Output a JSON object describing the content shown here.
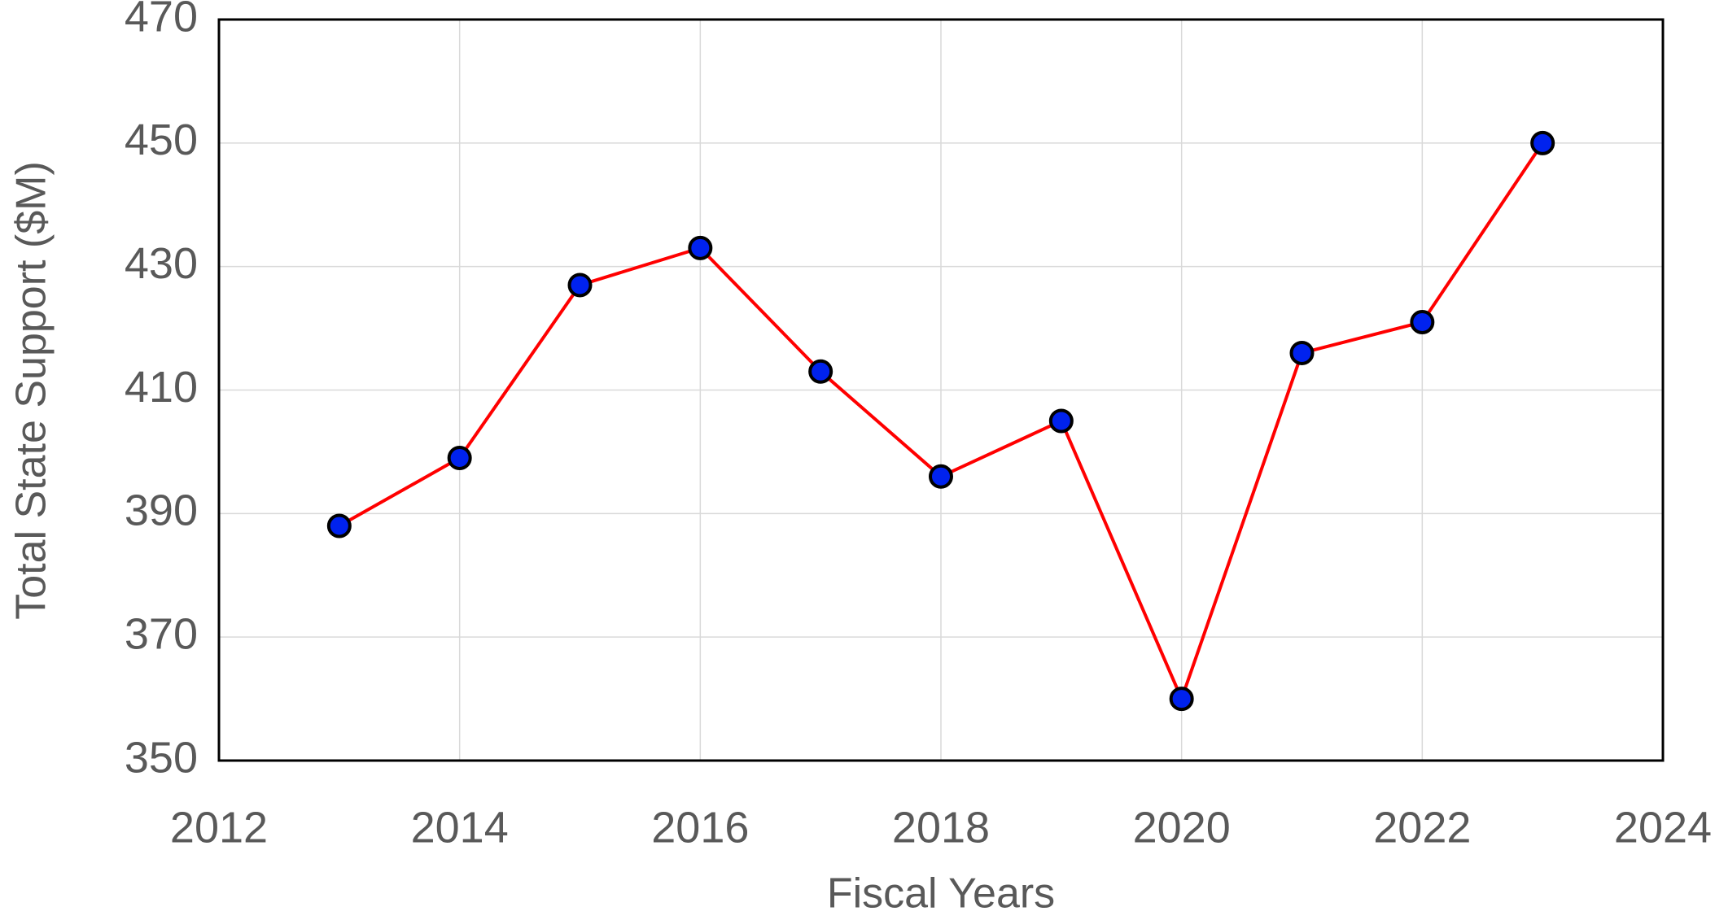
{
  "chart_data": {
    "type": "line",
    "x_label": "Fiscal Years",
    "y_label": "Total State Support ($M)",
    "x": [
      2013,
      2014,
      2015,
      2016,
      2017,
      2018,
      2019,
      2020,
      2021,
      2022,
      2023
    ],
    "series": [
      {
        "color": "#ff0000",
        "marker_color": "#0022ee",
        "values": [
          388,
          399,
          427,
          433,
          413,
          396,
          405,
          360,
          416,
          421,
          450
        ]
      }
    ],
    "xlim": [
      2012,
      2024
    ],
    "xticks": [
      2012,
      2014,
      2016,
      2018,
      2020,
      2022,
      2024
    ],
    "ylim": [
      350,
      470
    ],
    "yticks": [
      350,
      370,
      390,
      410,
      430,
      450,
      470
    ],
    "grid": true
  }
}
